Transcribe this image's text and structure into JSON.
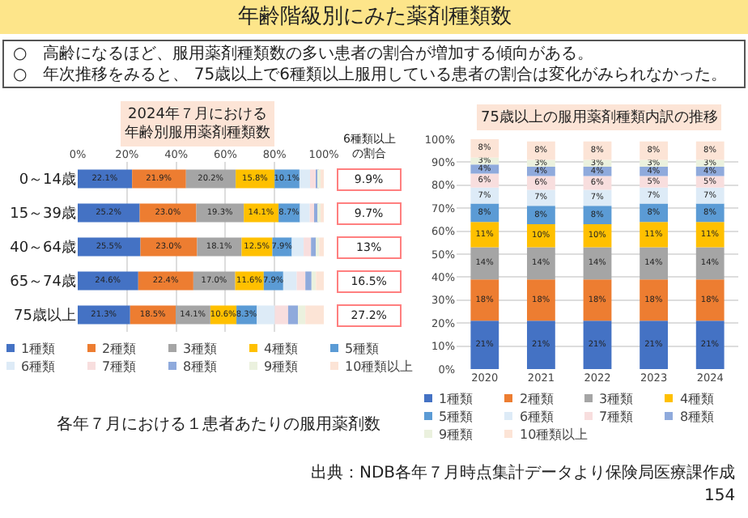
{
  "chart_data": [
    {
      "type": "other",
      "title": "年齢階級別にみた薬剤種類数",
      "subtitle": "○　高齢になるほど、服用薬剤種類数の多い患者の割合が増加する傾向がある。\n○　年次推移をみると、 75歳以上で6種類以上服用している患者の割合は変化がみられなかった。",
      "annotations": [
        "出典：NDB各年７月時点集計データより保険局医療課作成",
        "154"
      ]
    },
    {
      "type": "bar",
      "orientation": "horizontal",
      "stacked": true,
      "title": "2024年７月における年齢別服用薬剤種類数",
      "categories": [
        "0～14歳",
        "15～39歳",
        "40～64歳",
        "65～74歳",
        "75歳以上"
      ],
      "series": [
        {
          "name": "1種類",
          "color": "#4472c4",
          "values": [
            22.1,
            25.2,
            25.5,
            24.6,
            21.3
          ],
          "value_labels": [
            "22.1%",
            "25.2%",
            "25.5%",
            "24.6%",
            "21.3%"
          ]
        },
        {
          "name": "2種類",
          "color": "#ed7d31",
          "values": [
            21.9,
            23.0,
            23.0,
            22.4,
            18.5
          ],
          "value_labels": [
            "21.9%",
            "23.0%",
            "23.0%",
            "22.4%",
            "18.5%"
          ]
        },
        {
          "name": "3種類",
          "color": "#a5a5a5",
          "values": [
            20.2,
            19.3,
            18.1,
            17.0,
            14.1
          ],
          "value_labels": [
            "20.2%",
            "19.3%",
            "18.1%",
            "17.0%",
            "14.1%"
          ]
        },
        {
          "name": "4種類",
          "color": "#ffc000",
          "values": [
            15.8,
            14.1,
            12.5,
            11.6,
            10.6
          ],
          "value_labels": [
            "15.8%",
            "14.1%",
            "12.5%",
            "11.6%",
            "10.6%"
          ]
        },
        {
          "name": "5種類",
          "color": "#5b9bd5",
          "values": [
            10.1,
            8.7,
            7.9,
            7.9,
            8.3
          ],
          "value_labels": [
            "10.1%",
            "8.7%",
            "7.9%",
            "7.9%",
            "8.3%"
          ]
        },
        {
          "name": "6種類",
          "color": "#ddebf7",
          "values": [
            4.3,
            4.0,
            4.8,
            5.5,
            7.3
          ]
        },
        {
          "name": "7種類",
          "color": "#f8dede",
          "values": [
            2.4,
            2.3,
            3.0,
            3.5,
            5.4
          ]
        },
        {
          "name": "8種類",
          "color": "#8faadc",
          "values": [
            1.2,
            1.2,
            2.0,
            2.5,
            4.0
          ]
        },
        {
          "name": "9種類",
          "color": "#ebf1de",
          "values": [
            0.9,
            1.0,
            1.3,
            1.8,
            3.0
          ]
        },
        {
          "name": "10種類以上",
          "color": "#fce4d6",
          "values": [
            1.1,
            1.2,
            1.9,
            3.2,
            7.5
          ]
        }
      ],
      "xlim": [
        0,
        100
      ],
      "xticks": [
        {
          "value": 0,
          "label": "0%"
        },
        {
          "value": 20,
          "label": "20%"
        },
        {
          "value": 40,
          "label": "40%"
        },
        {
          "value": 60,
          "label": "60%"
        },
        {
          "value": 80,
          "label": "80%"
        },
        {
          "value": 100,
          "label": "100%"
        }
      ],
      "grid": "x",
      "legend": "bottom",
      "annotations": [
        "6種類以上の割合",
        "9.9%",
        "9.7%",
        "13%",
        "16.5%",
        "27.2%",
        "各年７月における１患者あたりの服用薬剤数"
      ]
    },
    {
      "type": "bar",
      "stacked": true,
      "title": "75歳以上の服用薬剤種類内訳の推移",
      "categories": [
        "2020",
        "2021",
        "2022",
        "2023",
        "2024"
      ],
      "series": [
        {
          "name": "1種類",
          "color": "#4472c4",
          "values": [
            21,
            21,
            21,
            21,
            21
          ],
          "value_labels": [
            "21%",
            "21%",
            "21%",
            "21%",
            "21%"
          ]
        },
        {
          "name": "2種類",
          "color": "#ed7d31",
          "values": [
            18,
            18,
            18,
            18,
            18
          ],
          "value_labels": [
            "18%",
            "18%",
            "18%",
            "18%",
            "18%"
          ]
        },
        {
          "name": "3種類",
          "color": "#a5a5a5",
          "values": [
            14,
            14,
            14,
            14,
            14
          ],
          "value_labels": [
            "14%",
            "14%",
            "14%",
            "14%",
            "14%"
          ]
        },
        {
          "name": "4種類",
          "color": "#ffc000",
          "values": [
            11,
            10,
            10,
            11,
            11
          ],
          "value_labels": [
            "11%",
            "10%",
            "10%",
            "11%",
            "11%"
          ]
        },
        {
          "name": "5種類",
          "color": "#5b9bd5",
          "values": [
            8,
            8,
            8,
            8,
            8
          ],
          "value_labels": [
            "8%",
            "8%",
            "8%",
            "8%",
            "8%"
          ]
        },
        {
          "name": "6種類",
          "color": "#ddebf7",
          "values": [
            7,
            7,
            7,
            7,
            7
          ],
          "value_labels": [
            "7%",
            "7%",
            "7%",
            "7%",
            "7%"
          ]
        },
        {
          "name": "7種類",
          "color": "#f8dede",
          "values": [
            6,
            6,
            6,
            5,
            5
          ],
          "value_labels": [
            "6%",
            "6%",
            "6%",
            "5%",
            "5%"
          ]
        },
        {
          "name": "8種類",
          "color": "#8faadc",
          "values": [
            4,
            4,
            4,
            4,
            4
          ],
          "value_labels": [
            "4%",
            "4%",
            "4%",
            "4%",
            "4%"
          ]
        },
        {
          "name": "9種類",
          "color": "#ebf1de",
          "values": [
            3,
            3,
            3,
            3,
            3
          ],
          "value_labels": [
            "3%",
            "3%",
            "3%",
            "3%",
            "3%"
          ]
        },
        {
          "name": "10種類以上",
          "color": "#fce4d6",
          "values": [
            8,
            8,
            8,
            8,
            8
          ],
          "value_labels": [
            "8%",
            "8%",
            "8%",
            "8%",
            "8%"
          ]
        }
      ],
      "ylim": [
        0,
        100
      ],
      "yticks": [
        {
          "value": 0,
          "label": "0%"
        },
        {
          "value": 10,
          "label": "10%"
        },
        {
          "value": 20,
          "label": "20%"
        },
        {
          "value": 30,
          "label": "30%"
        },
        {
          "value": 40,
          "label": "40%"
        },
        {
          "value": 50,
          "label": "50%"
        },
        {
          "value": 60,
          "label": "60%"
        },
        {
          "value": 70,
          "label": "70%"
        },
        {
          "value": 80,
          "label": "80%"
        },
        {
          "value": 90,
          "label": "90%"
        },
        {
          "value": 100,
          "label": "100%"
        }
      ],
      "grid": "y",
      "legend": "bottom"
    }
  ]
}
